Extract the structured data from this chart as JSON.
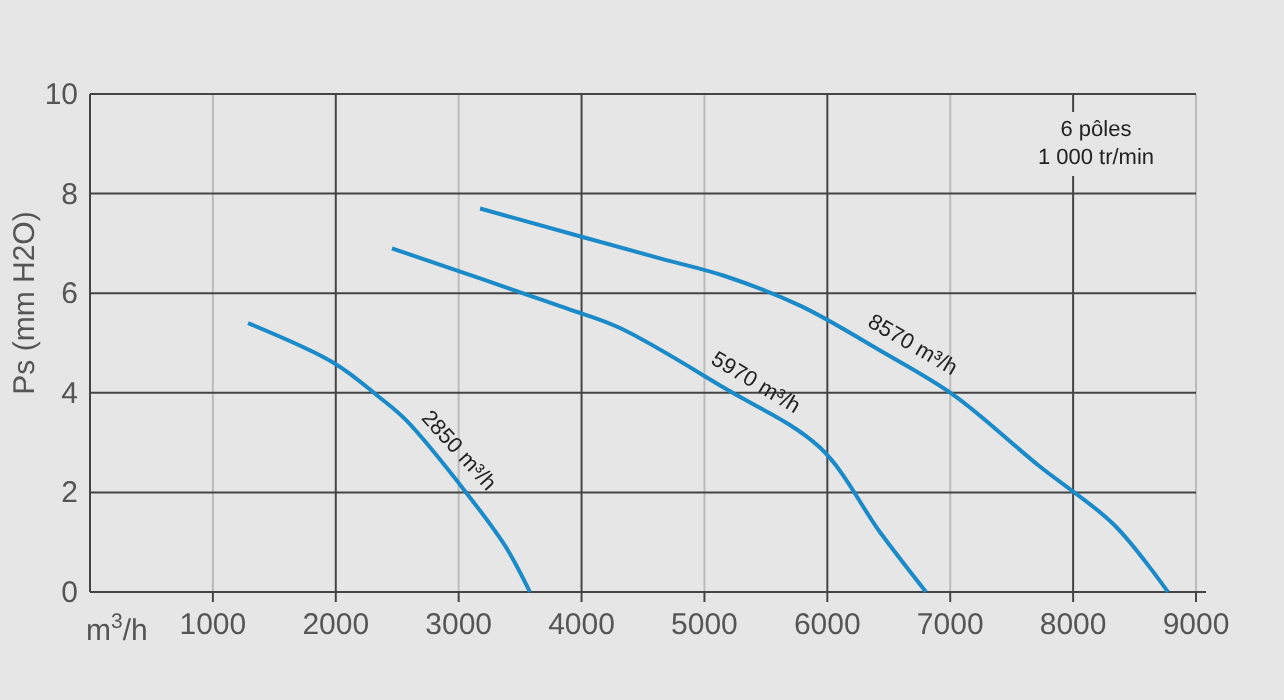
{
  "chart_data": {
    "type": "line",
    "xlabel": "m$^{3}$/h",
    "ylabel": "Ps (mm H2O)",
    "xlim": [
      0,
      9000
    ],
    "xticks": [
      1000,
      2000,
      3000,
      4000,
      5000,
      6000,
      7000,
      8000,
      9000
    ],
    "ylim": [
      0,
      10
    ],
    "yticks": [
      0,
      2,
      4,
      6,
      8,
      10
    ],
    "grid": true,
    "marker": "none",
    "line_style": "solid",
    "annotations": [
      "6 pôles\n1 000 tr/min"
    ],
    "series": [
      {
        "name": "2850 m³/h",
        "color": "#1a8ac8",
        "x": [
          1286,
          1985,
          2360,
          2572,
          3060,
          3385,
          3580
        ],
        "values": [
          5.4,
          4.6,
          3.9,
          3.45,
          2.0,
          0.9,
          0
        ]
      },
      {
        "name": "5970 m³/h",
        "color": "#1a8ac8",
        "x": [
          2457,
          3873,
          4313,
          5159,
          5940,
          6429,
          6803
        ],
        "values": [
          6.9,
          5.7,
          5.3,
          4.1,
          2.9,
          1.2,
          0
        ]
      },
      {
        "name": "8570 m³/h",
        "color": "#1a8ac8",
        "x": [
          3174,
          4638,
          5159,
          5778,
          6429,
          7031,
          7714,
          8333,
          8772
        ],
        "values": [
          7.7,
          6.7,
          6.35,
          5.75,
          4.85,
          3.95,
          2.55,
          1.35,
          0
        ]
      }
    ]
  }
}
